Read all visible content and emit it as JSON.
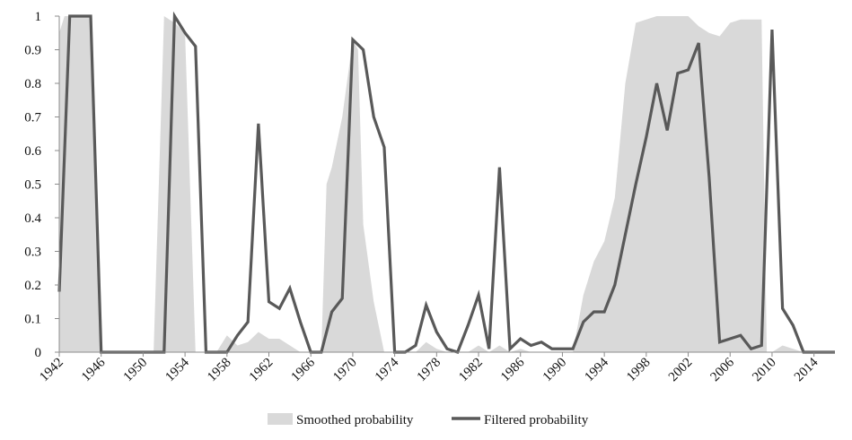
{
  "colors": {
    "smoothed": "#d9d9d9",
    "filtered": "#595959",
    "axis": "#8c8c8c",
    "text": "#111111"
  },
  "legend": {
    "position": "bottom-center",
    "smoothed_label": "Smoothed probability",
    "filtered_label": "Filtered probability"
  },
  "chart_data": {
    "type": "area",
    "xlim": [
      1942,
      2016
    ],
    "ylim": [
      0,
      1
    ],
    "grid": false,
    "x_ticks": [
      "1942",
      "1946",
      "1950",
      "1954",
      "1958",
      "1962",
      "1966",
      "1970",
      "1974",
      "1978",
      "1982",
      "1986",
      "1990",
      "1994",
      "1998",
      "2002",
      "2006",
      "2010",
      "2014"
    ],
    "x_tick_values": [
      1942,
      1946,
      1950,
      1954,
      1958,
      1962,
      1966,
      1970,
      1974,
      1978,
      1982,
      1986,
      1990,
      1994,
      1998,
      2002,
      2006,
      2010,
      2014
    ],
    "y_ticks": [
      "0",
      "0.1",
      "0.2",
      "0.3",
      "0.4",
      "0.5",
      "0.6",
      "0.7",
      "0.8",
      "0.9",
      "1"
    ],
    "y_tick_values": [
      0,
      0.1,
      0.2,
      0.3,
      0.4,
      0.5,
      0.6,
      0.7,
      0.8,
      0.9,
      1
    ],
    "series": [
      {
        "name": "Smoothed probability",
        "kind": "area",
        "points": [
          [
            1942,
            0.95
          ],
          [
            1942.5,
            1.0
          ],
          [
            1943,
            1.0
          ],
          [
            1944,
            1.0
          ],
          [
            1945,
            1.0
          ],
          [
            1946,
            0.0
          ],
          [
            1947,
            0.0
          ],
          [
            1948,
            0.0
          ],
          [
            1949,
            0.0
          ],
          [
            1950,
            0.0
          ],
          [
            1951,
            0.0
          ],
          [
            1952,
            1.0
          ],
          [
            1953,
            0.98
          ],
          [
            1954,
            0.95
          ],
          [
            1955,
            0.0
          ],
          [
            1956,
            0.0
          ],
          [
            1957,
            0.0
          ],
          [
            1958,
            0.05
          ],
          [
            1959,
            0.02
          ],
          [
            1960,
            0.03
          ],
          [
            1961,
            0.06
          ],
          [
            1962,
            0.04
          ],
          [
            1963,
            0.04
          ],
          [
            1964,
            0.02
          ],
          [
            1965,
            0.0
          ],
          [
            1966,
            0.0
          ],
          [
            1967,
            0.0
          ],
          [
            1967.5,
            0.5
          ],
          [
            1968,
            0.55
          ],
          [
            1969,
            0.7
          ],
          [
            1970,
            0.93
          ],
          [
            1970.5,
            0.9
          ],
          [
            1971,
            0.38
          ],
          [
            1972,
            0.15
          ],
          [
            1973,
            0.0
          ],
          [
            1974,
            0.0
          ],
          [
            1975,
            0.0
          ],
          [
            1976,
            0.0
          ],
          [
            1977,
            0.03
          ],
          [
            1978,
            0.01
          ],
          [
            1979,
            0.0
          ],
          [
            1980,
            0.0
          ],
          [
            1981,
            0.0
          ],
          [
            1982,
            0.02
          ],
          [
            1983,
            0.0
          ],
          [
            1984,
            0.02
          ],
          [
            1985,
            0.0
          ],
          [
            1986,
            0.01
          ],
          [
            1987,
            0.0
          ],
          [
            1988,
            0.0
          ],
          [
            1989,
            0.0
          ],
          [
            1990,
            0.0
          ],
          [
            1991,
            0.0
          ],
          [
            1992,
            0.17
          ],
          [
            1993,
            0.27
          ],
          [
            1994,
            0.33
          ],
          [
            1995,
            0.46
          ],
          [
            1996,
            0.8
          ],
          [
            1997,
            0.98
          ],
          [
            1998,
            0.99
          ],
          [
            1999,
            1.0
          ],
          [
            2000,
            1.0
          ],
          [
            2001,
            1.0
          ],
          [
            2002,
            1.0
          ],
          [
            2003,
            0.97
          ],
          [
            2004,
            0.95
          ],
          [
            2005,
            0.94
          ],
          [
            2006,
            0.98
          ],
          [
            2007,
            0.99
          ],
          [
            2008,
            0.99
          ],
          [
            2009,
            0.99
          ],
          [
            2009.5,
            0.0
          ],
          [
            2010,
            0.0
          ],
          [
            2011,
            0.02
          ],
          [
            2012,
            0.01
          ],
          [
            2013,
            0.0
          ],
          [
            2014,
            0.0
          ],
          [
            2015,
            0.0
          ],
          [
            2016,
            0.0
          ]
        ]
      },
      {
        "name": "Filtered probability",
        "kind": "line",
        "points": [
          [
            1942,
            0.18
          ],
          [
            1943,
            1.0
          ],
          [
            1944,
            1.0
          ],
          [
            1945,
            1.0
          ],
          [
            1946,
            0.0
          ],
          [
            1947,
            0.0
          ],
          [
            1948,
            0.0
          ],
          [
            1949,
            0.0
          ],
          [
            1950,
            0.0
          ],
          [
            1951,
            0.0
          ],
          [
            1952,
            0.0
          ],
          [
            1953,
            1.0
          ],
          [
            1954,
            0.95
          ],
          [
            1955,
            0.91
          ],
          [
            1956,
            0.0
          ],
          [
            1957,
            0.0
          ],
          [
            1958,
            0.0
          ],
          [
            1959,
            0.05
          ],
          [
            1960,
            0.09
          ],
          [
            1961,
            0.68
          ],
          [
            1962,
            0.15
          ],
          [
            1963,
            0.13
          ],
          [
            1964,
            0.19
          ],
          [
            1965,
            0.09
          ],
          [
            1966,
            0.0
          ],
          [
            1967,
            0.0
          ],
          [
            1968,
            0.12
          ],
          [
            1969,
            0.16
          ],
          [
            1970,
            0.93
          ],
          [
            1971,
            0.9
          ],
          [
            1972,
            0.7
          ],
          [
            1973,
            0.61
          ],
          [
            1974,
            0.0
          ],
          [
            1975,
            0.0
          ],
          [
            1976,
            0.02
          ],
          [
            1977,
            0.14
          ],
          [
            1978,
            0.06
          ],
          [
            1979,
            0.01
          ],
          [
            1980,
            0.0
          ],
          [
            1981,
            0.08
          ],
          [
            1982,
            0.17
          ],
          [
            1983,
            0.01
          ],
          [
            1984,
            0.55
          ],
          [
            1985,
            0.01
          ],
          [
            1986,
            0.04
          ],
          [
            1987,
            0.02
          ],
          [
            1988,
            0.03
          ],
          [
            1989,
            0.01
          ],
          [
            1990,
            0.01
          ],
          [
            1991,
            0.01
          ],
          [
            1992,
            0.09
          ],
          [
            1993,
            0.12
          ],
          [
            1994,
            0.12
          ],
          [
            1995,
            0.2
          ],
          [
            1996,
            0.35
          ],
          [
            1997,
            0.5
          ],
          [
            1998,
            0.64
          ],
          [
            1999,
            0.8
          ],
          [
            2000,
            0.66
          ],
          [
            2001,
            0.83
          ],
          [
            2002,
            0.84
          ],
          [
            2003,
            0.92
          ],
          [
            2004,
            0.52
          ],
          [
            2005,
            0.03
          ],
          [
            2006,
            0.04
          ],
          [
            2007,
            0.05
          ],
          [
            2008,
            0.01
          ],
          [
            2009,
            0.02
          ],
          [
            2010,
            0.96
          ],
          [
            2011,
            0.13
          ],
          [
            2012,
            0.08
          ],
          [
            2013,
            0.0
          ],
          [
            2014,
            0.0
          ],
          [
            2015,
            0.0
          ],
          [
            2016,
            0.0
          ]
        ]
      }
    ]
  }
}
